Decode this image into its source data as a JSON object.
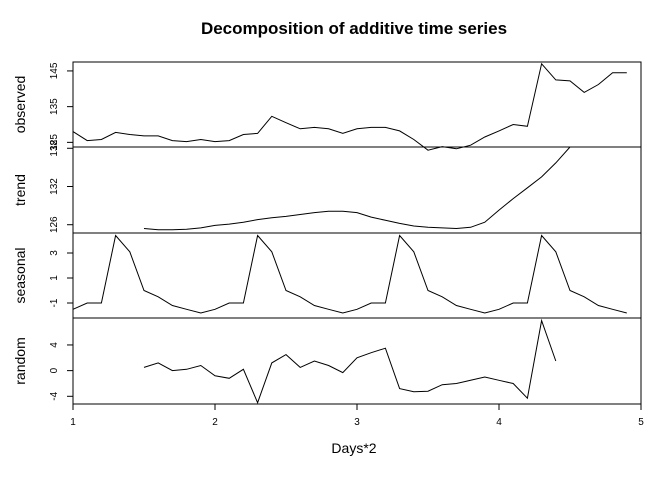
{
  "chart_data": {
    "type": "line",
    "title": "Decomposition of additive time series",
    "xlabel": "Days*2",
    "x_start": 1,
    "x_step": 0.1,
    "xlim": [
      1,
      5
    ],
    "x_ticks": [
      1,
      2,
      3,
      4,
      5
    ],
    "panels": [
      {
        "name": "observed",
        "ylim": [
          123.7,
          147.5
        ],
        "ticks": [
          125,
          135,
          145
        ],
        "tick_labels": [
          "125",
          "135",
          "145"
        ],
        "values": [
          128,
          125.5,
          125.8,
          127.8,
          127.2,
          126.8,
          126.8,
          125.5,
          125.2,
          125.8,
          125.2,
          125.5,
          127.2,
          127.5,
          132.3,
          130.5,
          128.8,
          129.2,
          128.8,
          127.5,
          128.8,
          129.2,
          129.2,
          128.2,
          125.8,
          122.8,
          123.8,
          123.2,
          124.2,
          126.5,
          128.2,
          130,
          129.5,
          147,
          142.5,
          142.2,
          139,
          141.2,
          144.5,
          144.5
        ]
      },
      {
        "name": "trend",
        "ylim": [
          124.7,
          138.2
        ],
        "ticks": [
          126,
          132,
          138
        ],
        "tick_labels": [
          "126",
          "132",
          "138"
        ],
        "values": [
          null,
          null,
          null,
          null,
          null,
          125.4,
          125.2,
          125.2,
          125.3,
          125.5,
          125.9,
          126.1,
          126.4,
          126.8,
          127.1,
          127.3,
          127.6,
          127.9,
          128.1,
          128.1,
          127.9,
          127.2,
          126.7,
          126.2,
          125.8,
          125.6,
          125.5,
          125.4,
          125.6,
          126.4,
          128.3,
          130.1,
          131.8,
          133.5,
          135.7,
          138.2,
          null,
          null,
          null,
          null
        ]
      },
      {
        "name": "seasonal",
        "ylim": [
          -2.2,
          4.6
        ],
        "ticks": [
          -1,
          1,
          3
        ],
        "tick_labels": [
          "-1",
          "1",
          "3"
        ],
        "values": [
          -1.5,
          -1,
          -1,
          4.4,
          3.1,
          0,
          -0.5,
          -1.2,
          -1.5,
          -1.8,
          -1.5,
          -1,
          -1,
          4.4,
          3.1,
          0,
          -0.5,
          -1.2,
          -1.5,
          -1.8,
          -1.5,
          -1,
          -1,
          4.4,
          3.1,
          0,
          -0.5,
          -1.2,
          -1.5,
          -1.8,
          -1.5,
          -1,
          -1,
          4.4,
          3.1,
          0,
          -0.5,
          -1.2,
          -1.5,
          -1.8
        ]
      },
      {
        "name": "random",
        "ylim": [
          -5.2,
          8.2
        ],
        "ticks": [
          -4,
          0,
          4
        ],
        "tick_labels": [
          "-4",
          "0",
          "4"
        ],
        "values": [
          null,
          null,
          null,
          null,
          null,
          0.5,
          1.2,
          0,
          0.2,
          0.8,
          -0.8,
          -1.2,
          0.2,
          -5,
          1.2,
          2.5,
          0.5,
          1.5,
          0.8,
          -0.3,
          2,
          2.8,
          3.5,
          -2.8,
          -3.3,
          -3.2,
          -2.2,
          -2,
          -1.5,
          -1,
          -1.5,
          -2,
          -4.3,
          7.8,
          1.5,
          null,
          null,
          null,
          null,
          null
        ]
      }
    ]
  }
}
